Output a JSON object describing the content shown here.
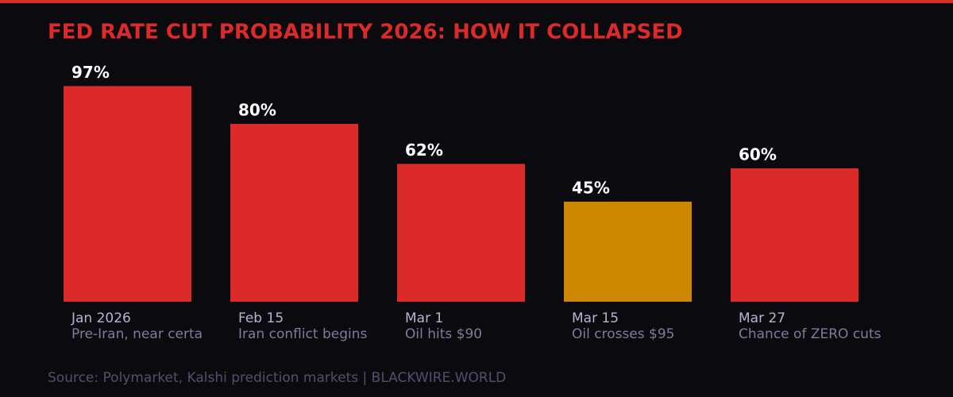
{
  "chart_data": {
    "type": "bar",
    "title": "FED RATE CUT PROBABILITY 2026: HOW IT COLLAPSED",
    "categories": [
      "Jan 2026",
      "Feb 15",
      "Mar 1",
      "Mar 15",
      "Mar 27"
    ],
    "descriptions": [
      "Pre-Iran, near certa",
      "Iran conflict begins",
      "Oil hits $90",
      "Oil crosses $95",
      "Chance of ZERO cuts"
    ],
    "values": [
      97,
      80,
      62,
      45,
      60
    ],
    "value_labels": [
      "97%",
      "80%",
      "62%",
      "45%",
      "60%"
    ],
    "colors": [
      "#dc2a2a",
      "#dc2a2a",
      "#dc2a2a",
      "#cc8800",
      "#dc2a2a"
    ],
    "source": "Source: Polymarket, Kalshi prediction markets | BLACKWIRE.WORLD"
  }
}
